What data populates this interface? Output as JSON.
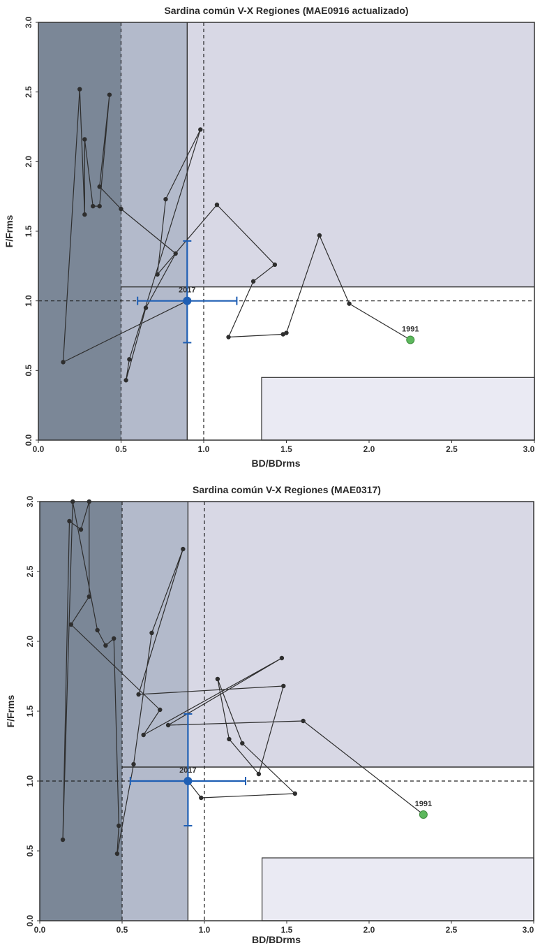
{
  "chart_data": [
    {
      "type": "line",
      "title": "Sardina común V-X Regiones (MAE0916 actualizado)",
      "xlabel": "BD/BDrms",
      "ylabel": "F/Frms",
      "xlim": [
        0,
        3.0
      ],
      "ylim": [
        0,
        3.0
      ],
      "x_ticks": [
        "0.0",
        "0.5",
        "1.0",
        "1.5",
        "2.0",
        "2.5",
        "3.0"
      ],
      "y_ticks": [
        "0.0",
        "0.5",
        "1.0",
        "1.5",
        "2.0",
        "2.5",
        "3.0"
      ],
      "reference_lines": {
        "x": [
          0.5,
          1.0
        ],
        "y": [
          1.0
        ]
      },
      "zones": {
        "collapse_bd_max": 0.5,
        "overexploited_bd_max": 0.9,
        "overfishing_f_min": 1.1,
        "full_exploitation_box": {
          "x": [
            1.35,
            3.0
          ],
          "y": [
            0,
            0.45
          ]
        }
      },
      "series": [
        {
          "x": [
            2.25,
            1.88,
            1.7,
            1.5,
            1.48,
            1.15,
            1.3,
            1.43,
            1.08,
            0.72,
            0.77,
            0.98,
            0.55,
            0.53,
            0.65,
            0.83,
            0.5,
            0.37,
            0.43,
            0.37,
            0.33,
            0.28,
            0.28,
            0.25,
            0.15,
            0.9
          ],
          "y": [
            0.72,
            0.98,
            1.47,
            0.77,
            0.76,
            0.74,
            1.14,
            1.26,
            1.69,
            1.19,
            1.73,
            2.23,
            0.58,
            0.43,
            0.95,
            1.34,
            1.66,
            1.82,
            2.48,
            1.68,
            1.68,
            2.16,
            1.62,
            2.52,
            0.56,
            1.0
          ]
        }
      ],
      "start_point": {
        "label": "1991",
        "x": 2.25,
        "y": 0.72,
        "color": "#5cb85c"
      },
      "current_point": {
        "label": "2017",
        "x": 0.9,
        "y": 1.0,
        "x_err": [
          0.6,
          1.2
        ],
        "y_err": [
          0.7,
          1.43
        ],
        "color": "#1f5fb4"
      }
    },
    {
      "type": "line",
      "title": "Sardina común V-X Regiones (MAE0317)",
      "xlabel": "BD/BDrms",
      "ylabel": "F/Frms",
      "xlim": [
        0,
        3.0
      ],
      "ylim": [
        0,
        3.0
      ],
      "x_ticks": [
        "0.0",
        "0.5",
        "1.0",
        "1.5",
        "2.0",
        "2.5",
        "3.0"
      ],
      "y_ticks": [
        "0.0",
        "0.5",
        "1.0",
        "1.5",
        "2.0",
        "2.5",
        "3.0"
      ],
      "reference_lines": {
        "x": [
          0.5,
          1.0
        ],
        "y": [
          1.0
        ]
      },
      "zones": {
        "collapse_bd_max": 0.5,
        "overexploited_bd_max": 0.9,
        "overfishing_f_min": 1.1,
        "full_exploitation_box": {
          "x": [
            1.35,
            3.0
          ],
          "y": [
            0,
            0.45
          ]
        }
      },
      "series": [
        {
          "x": [
            2.33,
            1.6,
            0.78,
            1.47,
            0.63,
            0.73,
            0.19,
            0.3,
            0.3,
            0.25,
            0.18,
            0.14,
            0.2,
            0.35,
            0.4,
            0.45,
            0.48,
            0.47,
            0.57,
            0.68,
            0.87,
            0.6,
            1.48,
            1.33,
            1.15,
            1.08,
            1.23,
            1.55,
            0.98,
            0.9
          ],
          "y": [
            0.76,
            1.43,
            1.4,
            1.88,
            1.33,
            1.51,
            2.12,
            2.32,
            3.0,
            2.8,
            2.86,
            0.58,
            3.0,
            2.08,
            1.97,
            2.02,
            0.68,
            0.48,
            1.12,
            2.06,
            2.66,
            1.62,
            1.68,
            1.05,
            1.3,
            1.73,
            1.27,
            0.91,
            0.88,
            1.0
          ]
        }
      ],
      "start_point": {
        "label": "1991",
        "x": 2.33,
        "y": 0.76,
        "color": "#5cb85c"
      },
      "current_point": {
        "label": "2017",
        "x": 0.9,
        "y": 1.0,
        "x_err": [
          0.55,
          1.25
        ],
        "y_err": [
          0.68,
          1.48
        ],
        "color": "#1f5fb4"
      }
    }
  ],
  "colors": {
    "collapse": "#7b8797",
    "overexploited": "#b3bacb",
    "overfishing": "#d8d8e5",
    "full_exploitation": "#eaeaf3",
    "trajectory": "#2e2e2e",
    "current": "#1f5fb4",
    "start": "#5cb85c"
  }
}
